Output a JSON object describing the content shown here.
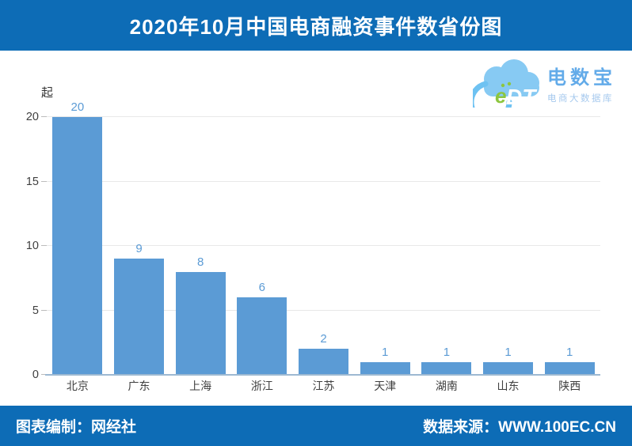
{
  "header": {
    "title": "2020年10月中国电商融资事件数省份图"
  },
  "logo": {
    "cloud_e": "e",
    "cloud_dt": "DT",
    "name": "电数宝",
    "subtitle": "电商大数据库"
  },
  "chart_data": {
    "type": "bar",
    "title": "2020年10月中国电商融资事件数省份图",
    "unit_label": "起",
    "categories": [
      "北京",
      "广东",
      "上海",
      "浙江",
      "江苏",
      "天津",
      "湖南",
      "山东",
      "陕西"
    ],
    "values": [
      20,
      9,
      8,
      6,
      2,
      1,
      1,
      1,
      1
    ],
    "ylabel": "起",
    "ylim": [
      0,
      20
    ],
    "y_ticks": [
      0,
      5,
      10,
      15,
      20
    ],
    "grid": true,
    "legend": "none",
    "bar_color": "#5b9bd5",
    "data_label_color": "#5b9bd5"
  },
  "footer": {
    "left": "图表编制：网经社",
    "right": "数据来源：WWW.100EC.CN"
  },
  "colors": {
    "band_blue": "#0d6cb6",
    "grid_gray": "#e8e8e8",
    "axis_blue_gray": "#9db9d2"
  }
}
